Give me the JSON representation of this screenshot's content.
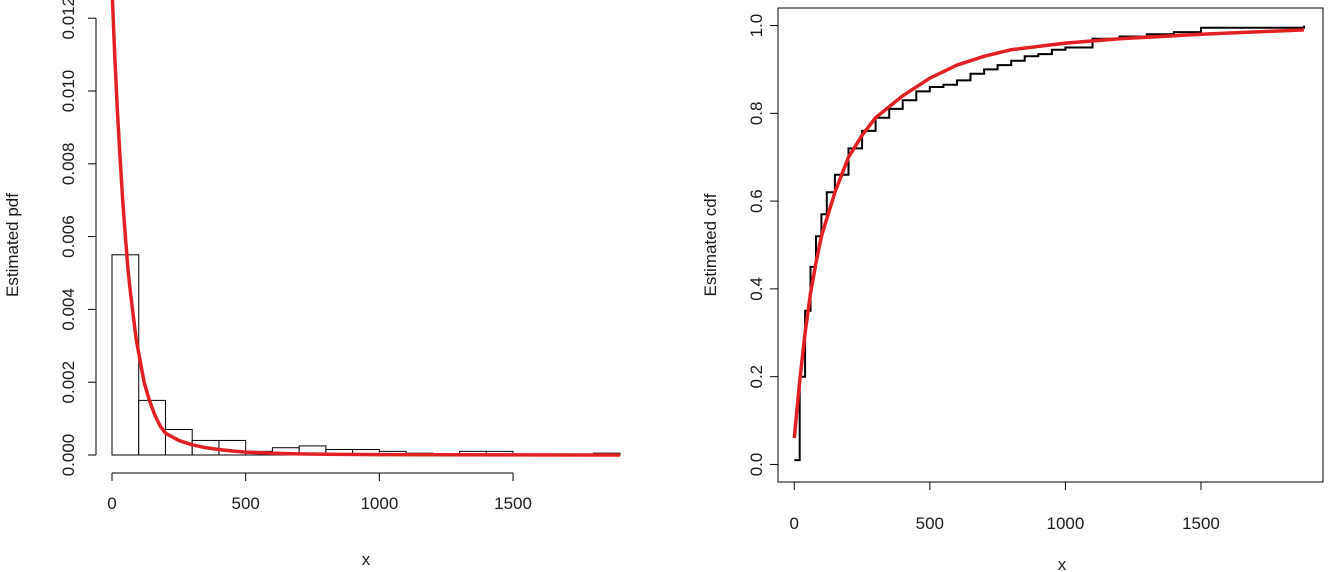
{
  "chart_data": [
    {
      "type": "bar",
      "subtype": "histogram-with-density-curve",
      "xlabel": "x",
      "ylabel": "Estimated pdf",
      "xlim": [
        0,
        1900
      ],
      "ylim": [
        0,
        0.0125
      ],
      "x_ticks": [
        0,
        500,
        1000,
        1500
      ],
      "x_tick_labels": [
        "0",
        "500",
        "1000",
        "1500"
      ],
      "y_ticks": [
        0,
        0.002,
        0.004,
        0.006,
        0.008,
        0.01,
        0.012
      ],
      "y_tick_labels": [
        "0.000",
        "0.002",
        "0.004",
        "0.006",
        "0.008",
        "0.010",
        "0.012"
      ],
      "bins": {
        "edges": [
          0,
          100,
          200,
          300,
          400,
          500,
          600,
          700,
          800,
          900,
          1000,
          1100,
          1200,
          1300,
          1400,
          1500,
          1600,
          1700,
          1800,
          1900
        ],
        "density": [
          0.0055,
          0.0015,
          0.0007,
          0.0004,
          0.0004,
          0.0001,
          0.0002,
          0.00025,
          0.00015,
          0.00015,
          0.0001,
          5e-05,
          0.0,
          0.0001,
          0.0001,
          0.0,
          0.0,
          0.0,
          5e-05
        ]
      },
      "series": [
        {
          "color": "#e32020",
          "x": [
            0,
            10,
            20,
            30,
            40,
            50,
            60,
            70,
            80,
            90,
            100,
            120,
            140,
            160,
            180,
            200,
            250,
            300,
            350,
            400,
            450,
            500,
            600,
            700,
            800,
            1000,
            1200,
            1500,
            1900
          ],
          "values": [
            0.0128,
            0.011,
            0.0095,
            0.0082,
            0.007,
            0.006,
            0.0051,
            0.0044,
            0.0038,
            0.0032,
            0.0028,
            0.002,
            0.0015,
            0.0011,
            0.0008,
            0.0006,
            0.0004,
            0.00028,
            0.0002,
            0.00015,
            0.00011,
            8e-05,
            5e-05,
            3e-05,
            2e-05,
            1e-05,
            5e-06,
            2e-06,
            0.0
          ]
        }
      ],
      "colors": {
        "bars": "#ffffff",
        "bar_edge": "#000000",
        "curve": "#e32020"
      }
    },
    {
      "type": "line",
      "subtype": "empirical-cdf-with-fitted-cdf",
      "xlabel": "x",
      "ylabel": "Estimated cdf",
      "xlim": [
        -60,
        1950
      ],
      "ylim": [
        -0.04,
        1.04
      ],
      "x_ticks": [
        0,
        500,
        1000,
        1500
      ],
      "x_tick_labels": [
        "0",
        "500",
        "1000",
        "1500"
      ],
      "y_ticks": [
        0,
        0.2,
        0.4,
        0.6,
        0.8,
        1.0
      ],
      "y_tick_labels": [
        "0.0",
        "0.2",
        "0.4",
        "0.6",
        "0.8",
        "1.0"
      ],
      "series": [
        {
          "color": "#000000",
          "style": "step",
          "x": [
            0,
            20,
            40,
            60,
            80,
            100,
            120,
            150,
            200,
            250,
            300,
            350,
            400,
            450,
            500,
            550,
            600,
            650,
            700,
            750,
            800,
            850,
            900,
            950,
            1000,
            1100,
            1200,
            1300,
            1400,
            1500,
            1600,
            1700,
            1800,
            1880
          ],
          "values": [
            0.01,
            0.2,
            0.35,
            0.45,
            0.52,
            0.57,
            0.62,
            0.66,
            0.72,
            0.76,
            0.79,
            0.81,
            0.83,
            0.85,
            0.86,
            0.865,
            0.875,
            0.89,
            0.9,
            0.91,
            0.92,
            0.93,
            0.935,
            0.945,
            0.95,
            0.97,
            0.975,
            0.98,
            0.985,
            0.995,
            0.995,
            0.995,
            0.995,
            1.0
          ]
        },
        {
          "color": "#e32020",
          "style": "smooth",
          "x": [
            0,
            20,
            40,
            60,
            80,
            100,
            150,
            200,
            250,
            300,
            400,
            500,
            600,
            700,
            800,
            1000,
            1200,
            1500,
            1880
          ],
          "values": [
            0.06,
            0.19,
            0.3,
            0.39,
            0.46,
            0.52,
            0.62,
            0.7,
            0.75,
            0.79,
            0.84,
            0.88,
            0.91,
            0.93,
            0.945,
            0.96,
            0.97,
            0.98,
            0.99
          ]
        }
      ],
      "colors": {
        "ecdf": "#000000",
        "fitted": "#e32020"
      }
    }
  ]
}
